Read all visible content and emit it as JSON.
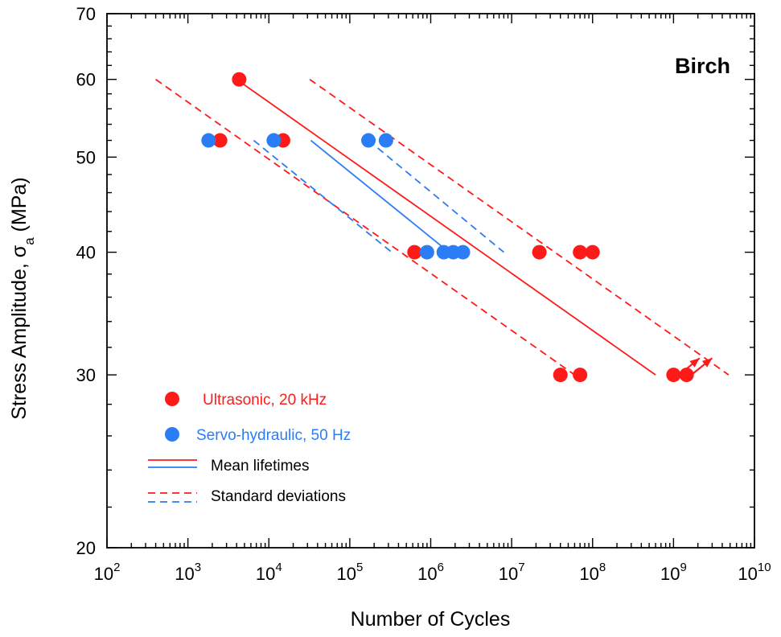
{
  "colors": {
    "red": "#ff1a1a",
    "blue": "#2b7df5",
    "axis": "#000000"
  },
  "chart_data": {
    "type": "scatter",
    "title": "Birch",
    "xlabel": "Number of Cycles",
    "ylabel": "Stress Amplitude, σ",
    "ylabel_subscript": "a",
    "ylabel_unit": "(MPa)",
    "xscale": "log",
    "yscale": "log",
    "xlim": [
      100,
      10000000000
    ],
    "ylim": [
      20,
      70
    ],
    "x_ticks": [
      {
        "base": "10",
        "exp": "2",
        "value": 100
      },
      {
        "base": "10",
        "exp": "3",
        "value": 1000
      },
      {
        "base": "10",
        "exp": "4",
        "value": 10000
      },
      {
        "base": "10",
        "exp": "5",
        "value": 100000
      },
      {
        "base": "10",
        "exp": "6",
        "value": 1000000
      },
      {
        "base": "10",
        "exp": "7",
        "value": 10000000
      },
      {
        "base": "10",
        "exp": "8",
        "value": 100000000
      },
      {
        "base": "10",
        "exp": "9",
        "value": 1000000000
      },
      {
        "base": "10",
        "exp": "10",
        "value": 10000000000
      }
    ],
    "y_ticks": [
      {
        "label": "20",
        "value": 20
      },
      {
        "label": "30",
        "value": 30
      },
      {
        "label": "40",
        "value": 40
      },
      {
        "label": "50",
        "value": 50
      },
      {
        "label": "60",
        "value": 60
      },
      {
        "label": "70",
        "value": 70
      }
    ],
    "series": [
      {
        "name": "Ultrasonic, 20 kHz",
        "color": "#ff1a1a",
        "kind": "points",
        "points": [
          {
            "x": 4300,
            "y": 60
          },
          {
            "x": 2500,
            "y": 52
          },
          {
            "x": 15000,
            "y": 52
          },
          {
            "x": 630000,
            "y": 40
          },
          {
            "x": 22000000,
            "y": 40
          },
          {
            "x": 70000000,
            "y": 40
          },
          {
            "x": 100000000,
            "y": 40
          },
          {
            "x": 40000000,
            "y": 30
          },
          {
            "x": 70000000,
            "y": 30
          },
          {
            "x": 1000000000,
            "y": 30
          },
          {
            "x": 1450000000,
            "y": 30
          }
        ],
        "runouts": [
          {
            "from": [
              1200000000,
              30.05
            ],
            "to": [
              2100000000,
              31.2
            ]
          },
          {
            "from": [
              1700000000,
              30.05
            ],
            "to": [
              3000000000,
              31.2
            ]
          }
        ]
      },
      {
        "name": "Servo-hydraulic, 50 Hz",
        "color": "#2b7df5",
        "kind": "points",
        "points": [
          {
            "x": 1800,
            "y": 52
          },
          {
            "x": 11500,
            "y": 52
          },
          {
            "x": 170000,
            "y": 52
          },
          {
            "x": 280000,
            "y": 52
          },
          {
            "x": 900000,
            "y": 40
          },
          {
            "x": 1450000,
            "y": 40
          },
          {
            "x": 1900000,
            "y": 40
          },
          {
            "x": 2500000,
            "y": 40
          }
        ]
      },
      {
        "name": "Mean lifetimes",
        "kind": "lines",
        "lines": [
          {
            "color": "#ff1a1a",
            "dashed": false,
            "points": [
              [
                4000,
                60
              ],
              [
                600000000,
                30
              ]
            ]
          },
          {
            "color": "#2b7df5",
            "dashed": false,
            "points": [
              [
                33000,
                52
              ],
              [
                1400000,
                40.5
              ]
            ]
          }
        ]
      },
      {
        "name": "Standard deviations",
        "kind": "lines",
        "lines": [
          {
            "color": "#ff1a1a",
            "dashed": true,
            "points": [
              [
                400,
                60
              ],
              [
                60000000,
                30
              ]
            ]
          },
          {
            "color": "#ff1a1a",
            "dashed": true,
            "points": [
              [
                32000,
                60
              ],
              [
                4800000000,
                30
              ]
            ]
          },
          {
            "color": "#2b7df5",
            "dashed": true,
            "points": [
              [
                6500,
                52
              ],
              [
                330000,
                40
              ]
            ]
          },
          {
            "color": "#2b7df5",
            "dashed": true,
            "points": [
              [
                170000,
                52
              ],
              [
                8000000,
                40
              ]
            ]
          }
        ]
      }
    ],
    "legend": {
      "position": "bottom-left",
      "items": [
        {
          "label": "Ultrasonic, 20 kHz",
          "symbol": "dot",
          "color": "#ff1a1a",
          "text_color": "#ff1a1a"
        },
        {
          "label": "Servo-hydraulic, 50 Hz",
          "symbol": "dot",
          "color": "#2b7df5",
          "text_color": "#2b7df5"
        },
        {
          "label": "Mean lifetimes",
          "symbol": "solid-lines",
          "text_color": "#000000"
        },
        {
          "label": "Standard deviations",
          "symbol": "dashed-lines",
          "text_color": "#000000"
        }
      ]
    }
  }
}
